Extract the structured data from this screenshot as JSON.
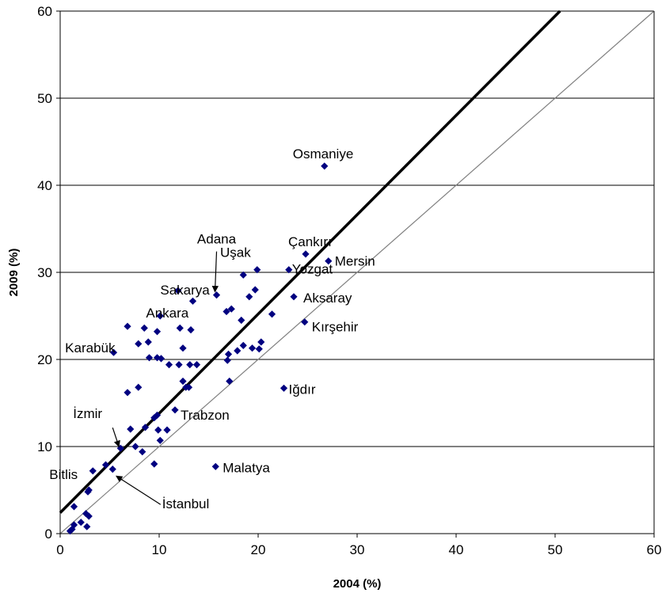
{
  "chart_data": {
    "type": "scatter",
    "xlabel": "2004 (%)",
    "ylabel": "2009 (%)",
    "xlim": [
      0,
      60
    ],
    "ylim": [
      0,
      60
    ],
    "xticks": [
      "0",
      "10",
      "20",
      "30",
      "40",
      "50",
      "60"
    ],
    "yticks": [
      "0",
      "10",
      "20",
      "30",
      "40",
      "50",
      "60"
    ],
    "grid": "horizontal",
    "marker_color": "#000080",
    "points": [
      {
        "x": 26.7,
        "y": 42.2
      },
      {
        "x": 24.8,
        "y": 32.1
      },
      {
        "x": 27.1,
        "y": 31.3
      },
      {
        "x": 23.1,
        "y": 30.3
      },
      {
        "x": 19.9,
        "y": 30.3
      },
      {
        "x": 18.5,
        "y": 29.7
      },
      {
        "x": 15.8,
        "y": 27.4
      },
      {
        "x": 11.9,
        "y": 27.9
      },
      {
        "x": 13.4,
        "y": 26.7
      },
      {
        "x": 23.6,
        "y": 27.2
      },
      {
        "x": 19.7,
        "y": 28.0
      },
      {
        "x": 19.1,
        "y": 27.2
      },
      {
        "x": 17.3,
        "y": 25.8
      },
      {
        "x": 16.8,
        "y": 25.5
      },
      {
        "x": 21.4,
        "y": 25.2
      },
      {
        "x": 18.3,
        "y": 24.5
      },
      {
        "x": 24.7,
        "y": 24.3
      },
      {
        "x": 10.1,
        "y": 25.0
      },
      {
        "x": 6.8,
        "y": 23.8
      },
      {
        "x": 8.5,
        "y": 23.6
      },
      {
        "x": 12.1,
        "y": 23.6
      },
      {
        "x": 13.2,
        "y": 23.4
      },
      {
        "x": 9.8,
        "y": 23.2
      },
      {
        "x": 7.9,
        "y": 21.8
      },
      {
        "x": 8.9,
        "y": 22.0
      },
      {
        "x": 12.4,
        "y": 21.3
      },
      {
        "x": 20.3,
        "y": 22.0
      },
      {
        "x": 18.5,
        "y": 21.6
      },
      {
        "x": 19.4,
        "y": 21.3
      },
      {
        "x": 20.1,
        "y": 21.2
      },
      {
        "x": 17.9,
        "y": 21.0
      },
      {
        "x": 17.0,
        "y": 20.6
      },
      {
        "x": 16.9,
        "y": 19.9
      },
      {
        "x": 5.4,
        "y": 20.8
      },
      {
        "x": 9.0,
        "y": 20.2
      },
      {
        "x": 9.8,
        "y": 20.2
      },
      {
        "x": 10.2,
        "y": 20.1
      },
      {
        "x": 11.0,
        "y": 19.4
      },
      {
        "x": 12.0,
        "y": 19.4
      },
      {
        "x": 13.1,
        "y": 19.4
      },
      {
        "x": 13.8,
        "y": 19.4
      },
      {
        "x": 12.4,
        "y": 17.5
      },
      {
        "x": 13.0,
        "y": 16.8
      },
      {
        "x": 12.7,
        "y": 16.8
      },
      {
        "x": 17.1,
        "y": 17.5
      },
      {
        "x": 22.6,
        "y": 16.7
      },
      {
        "x": 7.9,
        "y": 16.8
      },
      {
        "x": 6.8,
        "y": 16.2
      },
      {
        "x": 11.6,
        "y": 14.2
      },
      {
        "x": 9.8,
        "y": 13.6
      },
      {
        "x": 9.5,
        "y": 13.3
      },
      {
        "x": 7.1,
        "y": 12.0
      },
      {
        "x": 8.6,
        "y": 12.2
      },
      {
        "x": 9.9,
        "y": 11.9
      },
      {
        "x": 10.8,
        "y": 11.9
      },
      {
        "x": 10.1,
        "y": 10.7
      },
      {
        "x": 6.1,
        "y": 9.8
      },
      {
        "x": 7.6,
        "y": 10.0
      },
      {
        "x": 8.3,
        "y": 9.4
      },
      {
        "x": 9.5,
        "y": 8.0
      },
      {
        "x": 15.7,
        "y": 7.7
      },
      {
        "x": 4.6,
        "y": 7.9
      },
      {
        "x": 5.3,
        "y": 7.4
      },
      {
        "x": 3.3,
        "y": 7.2
      },
      {
        "x": 2.9,
        "y": 5.0
      },
      {
        "x": 2.8,
        "y": 4.8
      },
      {
        "x": 1.4,
        "y": 3.1
      },
      {
        "x": 2.6,
        "y": 2.3
      },
      {
        "x": 2.9,
        "y": 2.0
      },
      {
        "x": 2.1,
        "y": 1.3
      },
      {
        "x": 1.4,
        "y": 1.0
      },
      {
        "x": 2.7,
        "y": 0.8
      },
      {
        "x": 1.2,
        "y": 0.5
      },
      {
        "x": 1.0,
        "y": 0.3
      }
    ],
    "annotations": [
      {
        "text": "Osmaniye",
        "x": 26.7,
        "y": 42.2
      },
      {
        "text": "Çankırı",
        "x": 24.8,
        "y": 32.1
      },
      {
        "text": "Mersin",
        "x": 27.1,
        "y": 31.3
      },
      {
        "text": "Yozgat",
        "x": 23.1,
        "y": 30.3
      },
      {
        "text": "Uşak",
        "x": 19.9,
        "y": 30.3
      },
      {
        "text": "Adana",
        "x": 15.8,
        "y": 27.4
      },
      {
        "text": "Sakarya",
        "x": 11.9,
        "y": 27.9
      },
      {
        "text": "Ankara",
        "x": 10.1,
        "y": 25.0
      },
      {
        "text": "Aksaray",
        "x": 23.6,
        "y": 27.2
      },
      {
        "text": "Kırşehir",
        "x": 24.7,
        "y": 24.3
      },
      {
        "text": "Karabük",
        "x": 5.4,
        "y": 20.8
      },
      {
        "text": "Iğdır",
        "x": 22.6,
        "y": 16.7
      },
      {
        "text": "İzmir",
        "x": 6.1,
        "y": 9.8
      },
      {
        "text": "Trabzon",
        "x": 11.6,
        "y": 14.2
      },
      {
        "text": "Malatya",
        "x": 15.7,
        "y": 7.7
      },
      {
        "text": "Bitlis",
        "x": 3.3,
        "y": 7.2
      },
      {
        "text": "İstanbul",
        "x": 5.5,
        "y": 6.8
      }
    ],
    "lines": [
      {
        "kind": "regression",
        "color": "#000000",
        "x": [
          0,
          50.5
        ],
        "y": [
          2.4,
          60
        ]
      },
      {
        "kind": "identity",
        "color": "#808080",
        "x": [
          0,
          60
        ],
        "y": [
          0,
          60
        ]
      }
    ]
  }
}
